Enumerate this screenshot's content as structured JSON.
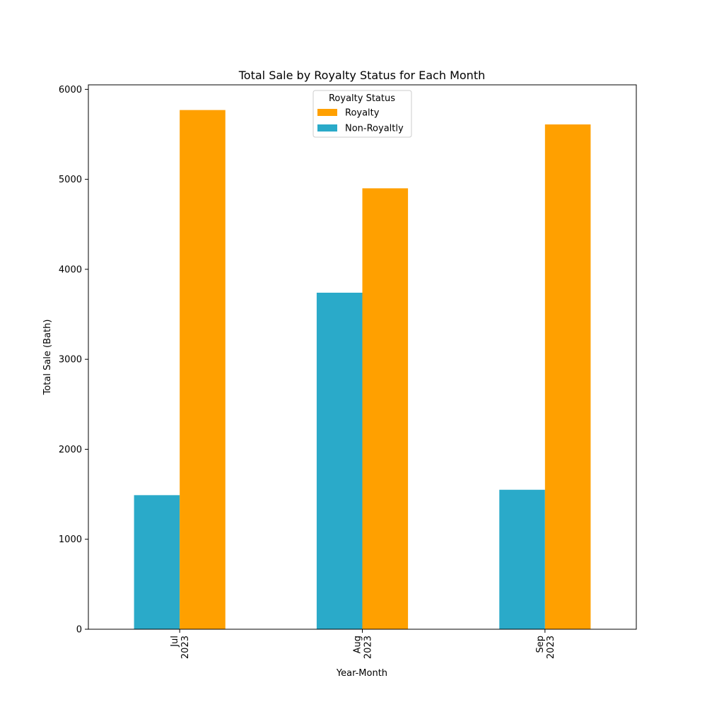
{
  "chart_data": {
    "type": "bar",
    "title": "Total Sale by Royalty Status for Each Month",
    "xlabel": "Year-Month",
    "ylabel": "Total Sale (Bath)",
    "categories": [
      [
        "Jul",
        "2023"
      ],
      [
        "Aug",
        "2023"
      ],
      [
        "Sep",
        "2023"
      ]
    ],
    "series": [
      {
        "name": "Non-Royaltly",
        "color": "#2aaac9",
        "values": [
          1490,
          3740,
          1550
        ]
      },
      {
        "name": "Royalty",
        "color": "#ffa000",
        "values": [
          5770,
          4900,
          5610
        ]
      }
    ],
    "ylim": [
      0,
      6050
    ],
    "yticks": [
      0,
      1000,
      2000,
      3000,
      4000,
      5000,
      6000
    ],
    "grid": false,
    "legend": {
      "title": "Royalty Status",
      "placement": "top-center",
      "order": [
        "Royalty",
        "Non-Royaltly"
      ]
    }
  }
}
